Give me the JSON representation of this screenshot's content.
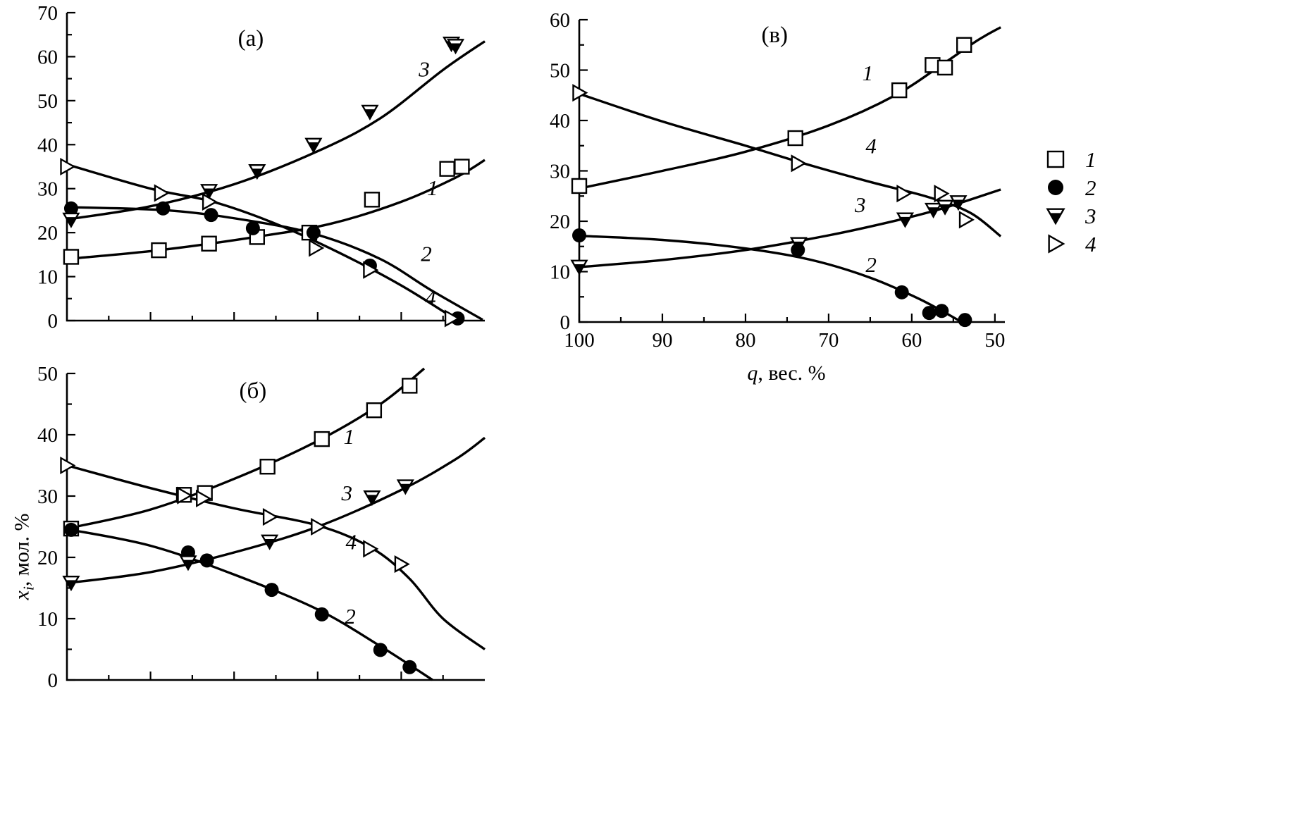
{
  "figure": {
    "background": "#ffffff",
    "line_color": "#000000",
    "y_axis_label": {
      "italic": "x",
      "sub": "i",
      "rest": ", мол. %"
    }
  },
  "legend": {
    "position": "right",
    "items": [
      {
        "marker": "square-open",
        "label": "1"
      },
      {
        "marker": "circle-filled",
        "label": "2"
      },
      {
        "marker": "tri-down-half",
        "label": "3"
      },
      {
        "marker": "tri-right-open",
        "label": "4"
      }
    ]
  },
  "chart_data": [
    {
      "id": "a",
      "type": "line",
      "title": "(а)",
      "title_at": [
        4.4,
        62.5
      ],
      "xlabel": "",
      "ylabel": "xi, мол. %",
      "x_axis": {
        "min": 0,
        "max": 10,
        "major_step": 2,
        "minor_step": 1,
        "show_labels": false,
        "skip_edge_ticks": true
      },
      "y_axis": {
        "min": 0,
        "max": 70,
        "major_step": 10,
        "minor_step": 5,
        "show_labels": true
      },
      "series": [
        {
          "name": "1",
          "marker": "square-open",
          "points": [
            [
              0.1,
              14.5
            ],
            [
              2.2,
              16
            ],
            [
              3.4,
              17.5
            ],
            [
              4.55,
              19
            ],
            [
              5.8,
              20
            ],
            [
              7.3,
              27.5
            ],
            [
              9.1,
              34.5
            ],
            [
              9.45,
              35
            ]
          ],
          "curve": [
            [
              0,
              14
            ],
            [
              2.2,
              16
            ],
            [
              4.5,
              19
            ],
            [
              6.3,
              22
            ],
            [
              8,
              27
            ],
            [
              9.3,
              32.5
            ],
            [
              10,
              36.5
            ]
          ]
        },
        {
          "name": "2",
          "marker": "circle-filled",
          "points": [
            [
              0.1,
              25.5
            ],
            [
              2.3,
              25.5
            ],
            [
              3.45,
              24
            ],
            [
              4.45,
              21
            ],
            [
              5.9,
              20
            ],
            [
              7.25,
              12.5
            ],
            [
              9.35,
              0.5
            ]
          ],
          "curve": [
            [
              0,
              25.8
            ],
            [
              2.5,
              25
            ],
            [
              4.5,
              22.5
            ],
            [
              6,
              19.5
            ],
            [
              7.5,
              14
            ],
            [
              8.7,
              7
            ],
            [
              9.95,
              0.2
            ]
          ]
        },
        {
          "name": "3",
          "marker": "tri-down-half",
          "points": [
            [
              0.1,
              23
            ],
            [
              3.4,
              29.5
            ],
            [
              4.55,
              34
            ],
            [
              5.9,
              40
            ],
            [
              7.25,
              47.5
            ],
            [
              9.2,
              63
            ],
            [
              9.3,
              62.5
            ]
          ],
          "curve": [
            [
              0,
              23
            ],
            [
              2,
              26
            ],
            [
              4,
              31
            ],
            [
              6,
              38.5
            ],
            [
              7.5,
              46
            ],
            [
              9,
              57
            ],
            [
              10,
              63.5
            ]
          ]
        },
        {
          "name": "4",
          "marker": "tri-right-open",
          "points": [
            [
              0,
              35
            ],
            [
              2.25,
              29
            ],
            [
              3.4,
              27
            ],
            [
              5.95,
              16.5
            ],
            [
              7.25,
              11.5
            ],
            [
              9.2,
              0.5
            ]
          ],
          "curve": [
            [
              0,
              35.5
            ],
            [
              2,
              30
            ],
            [
              3.5,
              27
            ],
            [
              5,
              22
            ],
            [
              6.5,
              15.5
            ],
            [
              8,
              8
            ],
            [
              9.3,
              0.3
            ]
          ]
        }
      ],
      "annotations": [
        {
          "text": "3",
          "at": [
            8.55,
            55.5
          ]
        },
        {
          "text": "1",
          "at": [
            8.75,
            28.5
          ]
        },
        {
          "text": "2",
          "at": [
            8.6,
            13.5
          ]
        },
        {
          "text": "4",
          "at": [
            8.7,
            3.5
          ]
        }
      ]
    },
    {
      "id": "v",
      "type": "line",
      "title": "(в)",
      "title_at": [
        76.5,
        55.5
      ],
      "xlabel": "q, вес. %",
      "ylabel": "xi, мол. %",
      "x_axis": {
        "min": 100,
        "max": 48.8,
        "major_step": 10,
        "minor_step": 5,
        "show_labels": true,
        "label": {
          "italic": "q",
          "rest": ", вес. %"
        }
      },
      "y_axis": {
        "min": 0,
        "max": 60,
        "major_step": 10,
        "minor_step": 5,
        "show_labels": true
      },
      "series": [
        {
          "name": "1",
          "marker": "square-open",
          "points": [
            [
              100,
              27
            ],
            [
              74,
              36.5
            ],
            [
              61.5,
              46
            ],
            [
              57.5,
              51
            ],
            [
              56,
              50.5
            ],
            [
              53.7,
              55
            ]
          ],
          "curve": [
            [
              100,
              26.5
            ],
            [
              90,
              30
            ],
            [
              80,
              33.8
            ],
            [
              70,
              39
            ],
            [
              62,
              45
            ],
            [
              56,
              51.5
            ],
            [
              52,
              56
            ],
            [
              49.3,
              58.5
            ]
          ]
        },
        {
          "name": "2",
          "marker": "circle-filled",
          "points": [
            [
              100,
              17.2
            ],
            [
              73.7,
              14.3
            ],
            [
              61.2,
              5.9
            ],
            [
              57.9,
              1.8
            ],
            [
              56.4,
              2.2
            ],
            [
              53.6,
              0.4
            ]
          ],
          "curve": [
            [
              100,
              17.1
            ],
            [
              90,
              16.3
            ],
            [
              80,
              14.6
            ],
            [
              72,
              12.3
            ],
            [
              65,
              8.8
            ],
            [
              59,
              4.5
            ],
            [
              54.3,
              0.3
            ]
          ]
        },
        {
          "name": "3",
          "marker": "tri-down-half",
          "points": [
            [
              100,
              11
            ],
            [
              73.6,
              15.5
            ],
            [
              60.8,
              20.4
            ],
            [
              57.4,
              22.3
            ],
            [
              56,
              22.9
            ],
            [
              54.4,
              23.8
            ]
          ],
          "curve": [
            [
              100,
              10.9
            ],
            [
              90,
              12.3
            ],
            [
              80,
              14.3
            ],
            [
              70,
              17.2
            ],
            [
              62,
              20.1
            ],
            [
              56,
              22.7
            ],
            [
              49.3,
              26.3
            ]
          ]
        },
        {
          "name": "4",
          "marker": "tri-right-open",
          "points": [
            [
              100,
              45.5
            ],
            [
              73.7,
              31.5
            ],
            [
              61,
              25.5
            ],
            [
              56.5,
              25.5
            ],
            [
              53.5,
              20.3
            ]
          ],
          "curve": [
            [
              100,
              45.3
            ],
            [
              90,
              39.8
            ],
            [
              80,
              35
            ],
            [
              72,
              31
            ],
            [
              65,
              27.8
            ],
            [
              58,
              24.8
            ],
            [
              53,
              21.7
            ],
            [
              49.3,
              17
            ]
          ]
        }
      ],
      "annotations": [
        {
          "text": "1",
          "at": [
            65.3,
            48
          ]
        },
        {
          "text": "4",
          "at": [
            64.9,
            33.5
          ]
        },
        {
          "text": "3",
          "at": [
            66.2,
            21.8
          ]
        },
        {
          "text": "2",
          "at": [
            64.9,
            9.9
          ]
        }
      ]
    },
    {
      "id": "b",
      "type": "line",
      "title": "(б)",
      "title_at": [
        4.45,
        46
      ],
      "xlabel": "",
      "ylabel": "xi, мол. %",
      "x_axis": {
        "min": 0,
        "max": 10,
        "major_step": 2,
        "minor_step": 1,
        "show_labels": false,
        "skip_edge_ticks": true
      },
      "y_axis": {
        "min": 0,
        "max": 50,
        "major_step": 10,
        "minor_step": 5,
        "show_labels": true
      },
      "series": [
        {
          "name": "1",
          "marker": "square-open",
          "points": [
            [
              0.1,
              24.7
            ],
            [
              2.8,
              30.2
            ],
            [
              3.3,
              30.5
            ],
            [
              4.8,
              34.8
            ],
            [
              6.1,
              39.3
            ],
            [
              7.35,
              44
            ],
            [
              8.2,
              48
            ]
          ],
          "curve": [
            [
              0,
              24.7
            ],
            [
              2,
              27.8
            ],
            [
              4,
              32.8
            ],
            [
              6,
              39
            ],
            [
              7.5,
              45
            ],
            [
              8.55,
              50.8
            ]
          ]
        },
        {
          "name": "2",
          "marker": "circle-filled",
          "points": [
            [
              0.1,
              24.5
            ],
            [
              2.9,
              20.8
            ],
            [
              3.35,
              19.5
            ],
            [
              4.9,
              14.7
            ],
            [
              6.1,
              10.7
            ],
            [
              7.5,
              4.9
            ],
            [
              8.2,
              2.1
            ]
          ],
          "curve": [
            [
              0,
              24.6
            ],
            [
              2,
              21.9
            ],
            [
              4,
              17.2
            ],
            [
              6,
              11.5
            ],
            [
              7.5,
              5.5
            ],
            [
              8.75,
              0
            ]
          ]
        },
        {
          "name": "3",
          "marker": "tri-down-half",
          "points": [
            [
              0.1,
              15.9
            ],
            [
              2.9,
              19.2
            ],
            [
              4.85,
              22.6
            ],
            [
              7.3,
              29.8
            ],
            [
              8.1,
              31.6
            ]
          ],
          "curve": [
            [
              0,
              15.8
            ],
            [
              2,
              17.6
            ],
            [
              4,
              20.8
            ],
            [
              6,
              25
            ],
            [
              8,
              31
            ],
            [
              9.3,
              36
            ],
            [
              10,
              39.5
            ]
          ]
        },
        {
          "name": "4",
          "marker": "tri-right-open",
          "points": [
            [
              0,
              35
            ],
            [
              2.8,
              30.1
            ],
            [
              3.25,
              29.6
            ],
            [
              4.85,
              26.6
            ],
            [
              6,
              25
            ],
            [
              7.25,
              21.4
            ],
            [
              8,
              18.9
            ]
          ],
          "curve": [
            [
              0,
              35
            ],
            [
              2,
              31.3
            ],
            [
              4,
              28
            ],
            [
              6,
              25.2
            ],
            [
              7.3,
              21.5
            ],
            [
              8.2,
              16.5
            ],
            [
              9,
              10
            ],
            [
              10,
              5
            ]
          ]
        }
      ],
      "annotations": [
        {
          "text": "1",
          "at": [
            6.75,
            38.5
          ]
        },
        {
          "text": "3",
          "at": [
            6.7,
            29.3
          ]
        },
        {
          "text": "4",
          "at": [
            6.8,
            21.3
          ]
        },
        {
          "text": "2",
          "at": [
            6.78,
            9.2
          ]
        }
      ]
    }
  ]
}
